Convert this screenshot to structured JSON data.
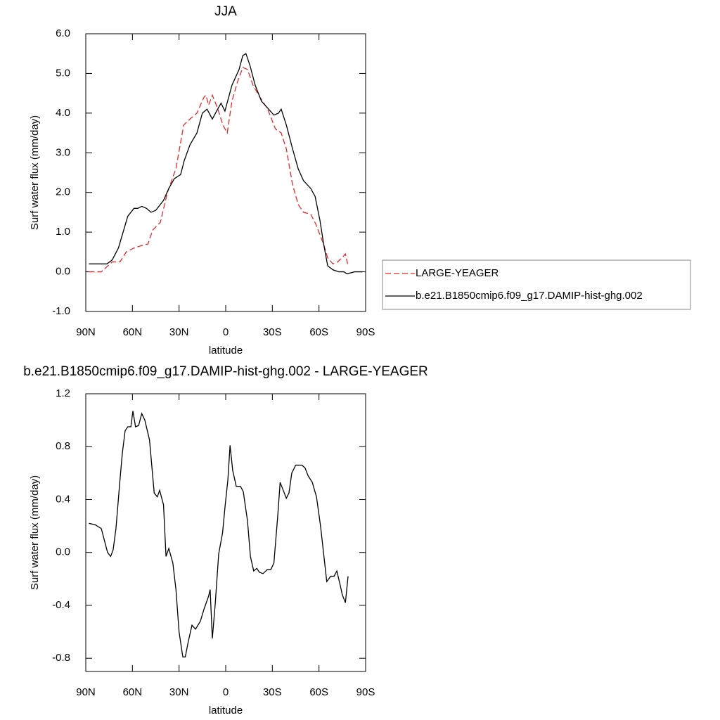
{
  "chart_data": [
    {
      "type": "line",
      "title": "JJA",
      "xlabel": "latitude",
      "ylabel": "Surf water flux (mm/day)",
      "xlim": [
        90,
        -90
      ],
      "xticks": [
        {
          "value": 90,
          "label": "90N"
        },
        {
          "value": 60,
          "label": "60N"
        },
        {
          "value": 30,
          "label": "30N"
        },
        0,
        {
          "value": -30,
          "label": "30S"
        },
        {
          "value": -60,
          "label": "60S"
        },
        {
          "value": -90,
          "label": "90S"
        }
      ],
      "ylim": [
        -1,
        6
      ],
      "yticks": [
        {
          "value": -1,
          "label": "-1.0"
        },
        {
          "value": 0,
          "label": "0.0"
        },
        {
          "value": 1,
          "label": "1.0"
        },
        {
          "value": 2,
          "label": "2.0"
        },
        {
          "value": 3,
          "label": "3.0"
        },
        {
          "value": 4,
          "label": "4.0"
        },
        {
          "value": 5,
          "label": "5.0"
        },
        {
          "value": 6,
          "label": "6.0"
        }
      ],
      "legend": "right",
      "series": [
        {
          "name": "LARGE-YEAGER",
          "color": "#e8262b",
          "dashed": true,
          "x": [
            88,
            80,
            73,
            68,
            64,
            59,
            55,
            50,
            47,
            42,
            37.5,
            32,
            27,
            23,
            18.5,
            14,
            12.7,
            11,
            8.6,
            5,
            1.8,
            -1,
            -4,
            -7.7,
            -11,
            -14,
            -17.6,
            -22,
            -27,
            -32,
            -35.7,
            -39,
            -43,
            -46.6,
            -50,
            -54.7,
            -58,
            -62.9,
            -65.6,
            -69,
            -72,
            -74.7,
            -77,
            -78.7
          ],
          "values": [
            0,
            0,
            0.25,
            0.25,
            0.5,
            0.6,
            0.65,
            0.7,
            1.05,
            1.25,
            2.0,
            2.6,
            3.7,
            3.85,
            4.0,
            4.4,
            4.45,
            4.2,
            4.45,
            4.1,
            3.7,
            3.5,
            4.3,
            4.8,
            5.15,
            5.1,
            4.7,
            4.4,
            4.1,
            3.6,
            3.5,
            3.1,
            2.2,
            1.7,
            1.5,
            1.45,
            1.2,
            0.7,
            0.35,
            0.2,
            0.25,
            0.35,
            0.45,
            0.15
          ]
        },
        {
          "name": "b.e21.B1850cmip6.f09_g17.DAMIP-hist-ghg.002",
          "color": "#000000",
          "dashed": false,
          "x": [
            88,
            82,
            76.4,
            73,
            69,
            66,
            63,
            59,
            56.5,
            54,
            51,
            48,
            45,
            40,
            36.6,
            33,
            29,
            26.7,
            23,
            18.5,
            15,
            12,
            8.6,
            5.9,
            3,
            0.5,
            -4,
            -8.6,
            -11,
            -13,
            -15.6,
            -19,
            -23,
            -27.6,
            -31,
            -34,
            -35.7,
            -39,
            -43,
            -46.6,
            -50,
            -54.7,
            -57.5,
            -60.6,
            -63,
            -65.6,
            -69,
            -72.8,
            -76,
            -78,
            -83,
            -88
          ],
          "values": [
            0.2,
            0.2,
            0.2,
            0.3,
            0.6,
            1.0,
            1.4,
            1.6,
            1.6,
            1.65,
            1.6,
            1.5,
            1.55,
            1.8,
            2.1,
            2.35,
            2.45,
            2.8,
            3.2,
            3.5,
            4.0,
            4.1,
            3.85,
            4.05,
            4.25,
            4.05,
            4.7,
            5.1,
            5.45,
            5.5,
            5.2,
            4.7,
            4.3,
            4.1,
            3.95,
            4.0,
            4.1,
            3.7,
            3.1,
            2.6,
            2.3,
            2.1,
            1.9,
            1.3,
            0.7,
            0.15,
            0.05,
            0.0,
            0.0,
            -0.05,
            0.0,
            0.0
          ]
        }
      ]
    },
    {
      "type": "line",
      "title": "b.e21.B1850cmip6.f09_g17.DAMIP-hist-ghg.002 - LARGE-YEAGER",
      "xlabel": "latitude",
      "ylabel": "Surf water flux (mm/day)",
      "xlim": [
        90,
        -90
      ],
      "xticks": [
        {
          "value": 90,
          "label": "90N"
        },
        {
          "value": 60,
          "label": "60N"
        },
        {
          "value": 30,
          "label": "30N"
        },
        0,
        {
          "value": -30,
          "label": "30S"
        },
        {
          "value": -60,
          "label": "60S"
        },
        {
          "value": -90,
          "label": "90S"
        }
      ],
      "ylim": [
        -0.9,
        1.2
      ],
      "yticks": [
        -0.8,
        -0.4,
        {
          "value": 0,
          "label": "0.0"
        },
        0.4,
        0.8,
        1.2
      ],
      "series": [
        {
          "color": "#000000",
          "dashed": false,
          "x": [
            88,
            84,
            80,
            76,
            74,
            72.4,
            70.6,
            68,
            66.5,
            64.7,
            63,
            61,
            59.7,
            58,
            56,
            54,
            52,
            49,
            46,
            44,
            42.5,
            40,
            38.4,
            36.6,
            34,
            32,
            30,
            27.6,
            26,
            24,
            21.7,
            19.4,
            16.3,
            14,
            11,
            10,
            8.6,
            6.8,
            4.5,
            2,
            0.4,
            -1.4,
            -2.8,
            -4.5,
            -6.8,
            -9.5,
            -11.3,
            -14,
            -15.9,
            -18,
            -20,
            -21.7,
            -24,
            -26.7,
            -29,
            -31,
            -33.5,
            -35,
            -37,
            -39,
            -40.7,
            -42.5,
            -45,
            -49,
            -51,
            -53,
            -55.7,
            -58.4,
            -61,
            -63,
            -65,
            -67.5,
            -69.7,
            -71.5,
            -73.7,
            -75,
            -77,
            -78.7
          ],
          "values": [
            0.22,
            0.21,
            0.18,
            0.0,
            -0.03,
            0.02,
            0.18,
            0.55,
            0.75,
            0.92,
            0.95,
            0.95,
            1.07,
            0.95,
            0.96,
            1.05,
            1.0,
            0.85,
            0.45,
            0.42,
            0.47,
            0.36,
            -0.03,
            0.03,
            -0.08,
            -0.28,
            -0.6,
            -0.79,
            -0.79,
            -0.67,
            -0.55,
            -0.58,
            -0.52,
            -0.43,
            -0.33,
            -0.28,
            -0.65,
            -0.4,
            -0.01,
            0.15,
            0.35,
            0.55,
            0.81,
            0.62,
            0.5,
            0.5,
            0.46,
            0.24,
            -0.03,
            -0.14,
            -0.12,
            -0.15,
            -0.16,
            -0.13,
            -0.13,
            -0.08,
            0.28,
            0.53,
            0.47,
            0.41,
            0.45,
            0.6,
            0.66,
            0.66,
            0.64,
            0.58,
            0.53,
            0.42,
            0.2,
            -0.01,
            -0.22,
            -0.18,
            -0.18,
            -0.14,
            -0.25,
            -0.32,
            -0.38,
            -0.18
          ]
        }
      ]
    }
  ]
}
